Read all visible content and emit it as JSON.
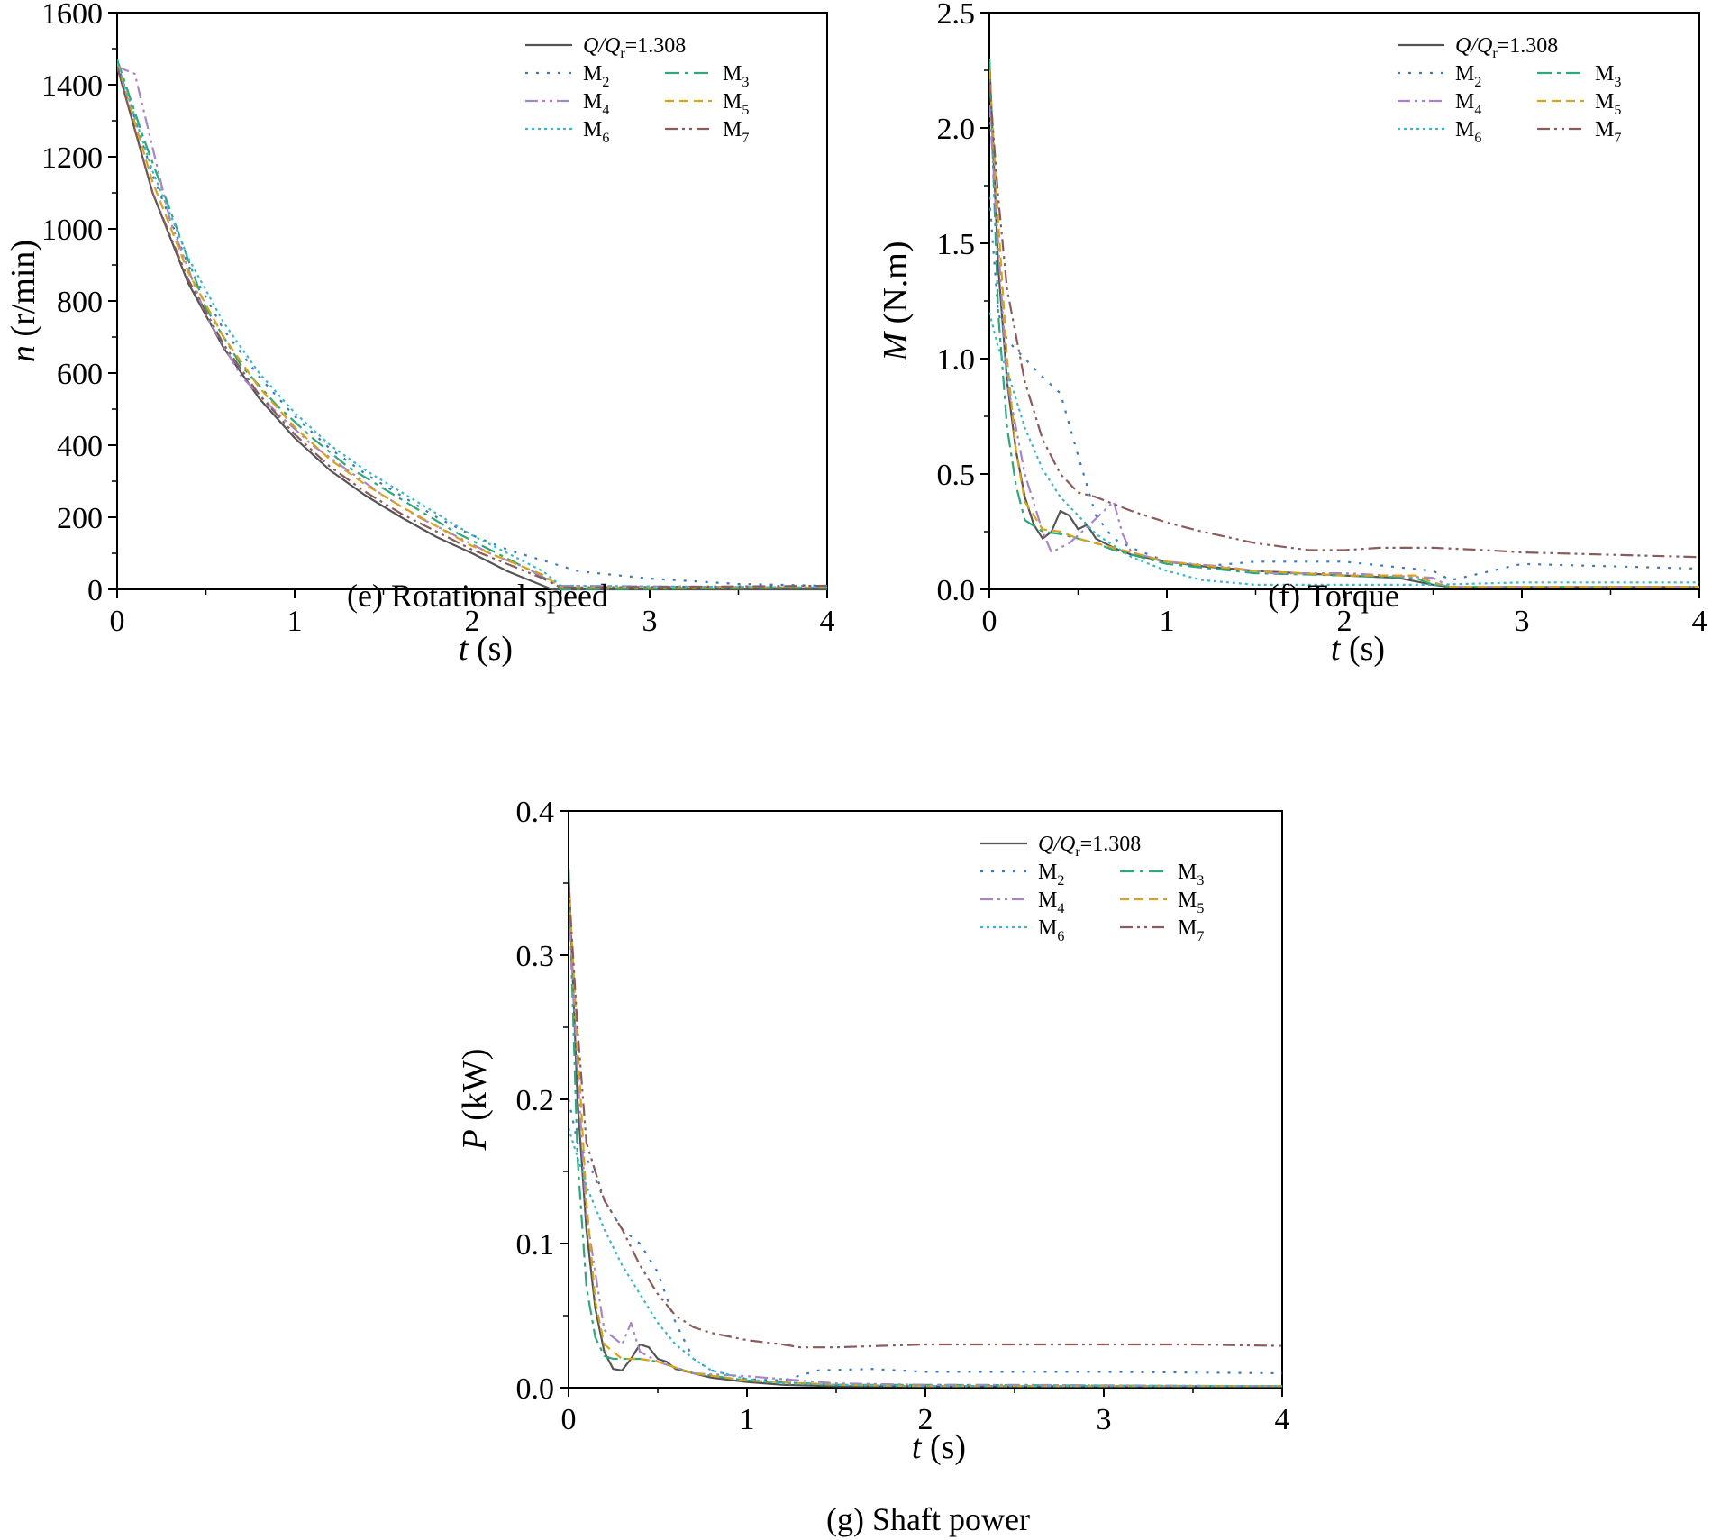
{
  "chart_data": [
    {
      "type": "line",
      "id": "speed",
      "caption": "(e) Rotational speed",
      "xlabel_italic": "t",
      "xlabel_unit": " (s)",
      "ylabel_italic": "n",
      "ylabel_unit": " (r/min)",
      "xlim": [
        0,
        4
      ],
      "ylim": [
        0,
        1600
      ],
      "xticks": [
        0,
        1,
        2,
        3,
        4
      ],
      "xtick_labels": [
        "0",
        "1",
        "2",
        "3",
        "4"
      ],
      "yticks": [
        0,
        200,
        400,
        600,
        800,
        1000,
        1200,
        1400,
        1600
      ],
      "ytick_labels": [
        "0",
        "200",
        "400",
        "600",
        "800",
        "1000",
        "1200",
        "1400",
        "1600"
      ],
      "legend_position": "top-right",
      "series": [
        {
          "key": "Q",
          "name": "Q/Qr=1.308",
          "color": "#555555",
          "dash": "solid",
          "x": [
            0,
            0.2,
            0.4,
            0.6,
            0.8,
            1.0,
            1.2,
            1.4,
            1.6,
            1.8,
            2.0,
            2.2,
            2.4,
            2.45,
            4.0
          ],
          "y": [
            1450,
            1100,
            850,
            670,
            530,
            420,
            330,
            260,
            200,
            145,
            100,
            50,
            10,
            0,
            0
          ]
        },
        {
          "key": "M2",
          "name": "M2",
          "color": "#3a78c2",
          "dash": "dot",
          "x": [
            0,
            0.2,
            0.4,
            0.6,
            0.8,
            1.0,
            1.2,
            1.4,
            1.6,
            1.8,
            2.0,
            2.2,
            2.4,
            2.6,
            3.0,
            3.5,
            4.0
          ],
          "y": [
            1460,
            1150,
            900,
            720,
            590,
            480,
            390,
            320,
            260,
            200,
            150,
            110,
            80,
            50,
            30,
            15,
            10
          ]
        },
        {
          "key": "M3",
          "name": "M3",
          "color": "#2ca87a",
          "dash": "dashdot",
          "x": [
            0,
            0.15,
            0.3,
            0.5,
            0.7,
            0.9,
            1.1,
            1.3,
            1.5,
            1.7,
            1.9,
            2.1,
            2.3,
            2.45,
            2.5,
            4.0
          ],
          "y": [
            1470,
            1250,
            1050,
            780,
            620,
            510,
            420,
            340,
            280,
            220,
            160,
            110,
            60,
            20,
            0,
            5
          ]
        },
        {
          "key": "M4",
          "name": "M4",
          "color": "#a884c8",
          "dash": "dashdotdot",
          "x": [
            0,
            0.1,
            0.3,
            0.5,
            0.7,
            0.9,
            1.1,
            1.3,
            1.5,
            1.7,
            1.9,
            2.1,
            2.3,
            2.5,
            4.0
          ],
          "y": [
            1450,
            1430,
            1020,
            760,
            590,
            490,
            400,
            330,
            260,
            200,
            150,
            100,
            60,
            10,
            5
          ]
        },
        {
          "key": "M5",
          "name": "M5",
          "color": "#d9a21b",
          "dash": "dash",
          "x": [
            0,
            0.2,
            0.4,
            0.6,
            0.8,
            1.0,
            1.2,
            1.4,
            1.6,
            1.8,
            2.0,
            2.2,
            2.4,
            2.5,
            4.0
          ],
          "y": [
            1460,
            1130,
            880,
            700,
            560,
            450,
            360,
            290,
            230,
            175,
            120,
            80,
            40,
            5,
            5
          ]
        },
        {
          "key": "M6",
          "name": "M6",
          "color": "#3bb8c8",
          "dash": "dense-dot",
          "x": [
            0,
            0.2,
            0.4,
            0.6,
            0.8,
            1.0,
            1.2,
            1.4,
            1.6,
            1.8,
            2.0,
            2.2,
            2.4,
            2.5,
            4.0
          ],
          "y": [
            1460,
            1160,
            920,
            740,
            600,
            490,
            400,
            330,
            270,
            210,
            150,
            100,
            50,
            10,
            5
          ]
        },
        {
          "key": "M7",
          "name": "M7",
          "color": "#8b5a5a",
          "dash": "dashdotdot",
          "x": [
            0,
            0.2,
            0.4,
            0.6,
            0.8,
            1.0,
            1.2,
            1.4,
            1.6,
            1.8,
            2.0,
            2.2,
            2.4,
            2.5,
            4.0
          ],
          "y": [
            1450,
            1100,
            860,
            680,
            540,
            430,
            340,
            270,
            210,
            160,
            110,
            70,
            30,
            5,
            10
          ]
        }
      ]
    },
    {
      "type": "line",
      "id": "torque",
      "caption": "(f) Torque",
      "xlabel_italic": "t",
      "xlabel_unit": " (s)",
      "ylabel_italic": "M",
      "ylabel_unit": " (N.m)",
      "xlim": [
        0,
        4
      ],
      "ylim": [
        0,
        2.5
      ],
      "xticks": [
        0,
        1,
        2,
        3,
        4
      ],
      "xtick_labels": [
        "0",
        "1",
        "2",
        "3",
        "4"
      ],
      "yticks": [
        0,
        0.5,
        1.0,
        1.5,
        2.0,
        2.5
      ],
      "ytick_labels": [
        "0.0",
        "0.5",
        "1.0",
        "1.5",
        "2.0",
        "2.5"
      ],
      "legend_position": "top-right",
      "series": [
        {
          "key": "Q",
          "name": "Q/Qr=1.308",
          "color": "#555555",
          "dash": "solid",
          "x": [
            0,
            0.05,
            0.1,
            0.15,
            0.2,
            0.25,
            0.3,
            0.35,
            0.4,
            0.45,
            0.5,
            0.55,
            0.6,
            0.7,
            0.8,
            1.0,
            1.2,
            1.5,
            2.0,
            2.3,
            2.5,
            2.6,
            3.0,
            4.0
          ],
          "y": [
            2.3,
            1.4,
            0.9,
            0.6,
            0.4,
            0.28,
            0.22,
            0.25,
            0.34,
            0.32,
            0.26,
            0.28,
            0.22,
            0.18,
            0.15,
            0.12,
            0.1,
            0.08,
            0.06,
            0.05,
            0.02,
            0.01,
            0.01,
            0.01
          ]
        },
        {
          "key": "M2",
          "name": "M2",
          "color": "#3a78c2",
          "dash": "dot",
          "x": [
            0,
            0.05,
            0.1,
            0.2,
            0.3,
            0.4,
            0.5,
            0.6,
            0.7,
            0.8,
            1.0,
            1.2,
            1.5,
            2.0,
            2.5,
            2.6,
            3.0,
            3.5,
            4.0
          ],
          "y": [
            1.7,
            1.2,
            1.08,
            1.0,
            0.92,
            0.85,
            0.58,
            0.32,
            0.22,
            0.18,
            0.12,
            0.1,
            0.12,
            0.12,
            0.08,
            0.04,
            0.11,
            0.1,
            0.09
          ]
        },
        {
          "key": "M3",
          "name": "M3",
          "color": "#2ca87a",
          "dash": "dashdot",
          "x": [
            0,
            0.05,
            0.1,
            0.15,
            0.2,
            0.3,
            0.4,
            0.5,
            0.6,
            0.7,
            1.0,
            1.5,
            2.0,
            2.4,
            2.5,
            2.6,
            4.0
          ],
          "y": [
            2.3,
            1.2,
            0.7,
            0.45,
            0.3,
            0.25,
            0.24,
            0.22,
            0.2,
            0.17,
            0.11,
            0.07,
            0.06,
            0.05,
            0.02,
            0.01,
            0.01
          ]
        },
        {
          "key": "M4",
          "name": "M4",
          "color": "#a884c8",
          "dash": "dashdotdot",
          "x": [
            0,
            0.05,
            0.1,
            0.2,
            0.3,
            0.35,
            0.45,
            0.55,
            0.7,
            0.75,
            0.8,
            1.0,
            1.3,
            1.6,
            2.0,
            2.5,
            2.6,
            4.0
          ],
          "y": [
            2.1,
            1.5,
            0.9,
            0.5,
            0.25,
            0.16,
            0.2,
            0.27,
            0.38,
            0.24,
            0.16,
            0.12,
            0.1,
            0.07,
            0.07,
            0.05,
            0.01,
            0.01
          ]
        },
        {
          "key": "M5",
          "name": "M5",
          "color": "#d9a21b",
          "dash": "dash",
          "x": [
            0,
            0.05,
            0.1,
            0.15,
            0.2,
            0.3,
            0.4,
            0.5,
            0.6,
            0.7,
            1.0,
            1.5,
            2.0,
            2.4,
            2.5,
            2.6,
            4.0
          ],
          "y": [
            2.25,
            1.6,
            1.0,
            0.6,
            0.38,
            0.26,
            0.25,
            0.22,
            0.2,
            0.18,
            0.12,
            0.08,
            0.06,
            0.06,
            0.03,
            0.01,
            0.01
          ]
        },
        {
          "key": "M6",
          "name": "M6",
          "color": "#3bb8c8",
          "dash": "dense-dot",
          "x": [
            0,
            0.05,
            0.1,
            0.2,
            0.3,
            0.4,
            0.5,
            0.6,
            0.8,
            1.0,
            1.2,
            1.5,
            2.0,
            2.5,
            3.0,
            4.0
          ],
          "y": [
            1.2,
            1.05,
            0.95,
            0.7,
            0.52,
            0.4,
            0.32,
            0.24,
            0.14,
            0.08,
            0.04,
            0.02,
            0.02,
            0.02,
            0.03,
            0.03
          ]
        },
        {
          "key": "M7",
          "name": "M7",
          "color": "#8b5a5a",
          "dash": "dashdotdot",
          "x": [
            0,
            0.05,
            0.1,
            0.2,
            0.3,
            0.4,
            0.5,
            0.6,
            0.8,
            1.0,
            1.2,
            1.5,
            1.8,
            2.0,
            2.2,
            2.5,
            2.8,
            3.0,
            3.5,
            4.0
          ],
          "y": [
            2.2,
            1.7,
            1.3,
            0.9,
            0.65,
            0.5,
            0.42,
            0.4,
            0.34,
            0.29,
            0.25,
            0.2,
            0.17,
            0.17,
            0.18,
            0.18,
            0.17,
            0.16,
            0.15,
            0.14
          ]
        }
      ]
    },
    {
      "type": "line",
      "id": "power",
      "caption": "(g) Shaft power",
      "xlabel_italic": "t",
      "xlabel_unit": " (s)",
      "ylabel_italic": "P",
      "ylabel_unit": " (kW)",
      "xlim": [
        0,
        4
      ],
      "ylim": [
        0,
        0.4
      ],
      "xticks": [
        0,
        1,
        2,
        3,
        4
      ],
      "xtick_labels": [
        "0",
        "1",
        "2",
        "3",
        "4"
      ],
      "yticks": [
        0,
        0.1,
        0.2,
        0.3,
        0.4
      ],
      "ytick_labels": [
        "0.0",
        "0.1",
        "0.2",
        "0.3",
        "0.4"
      ],
      "legend_position": "top-right",
      "series": [
        {
          "key": "Q",
          "name": "Q/Qr=1.308",
          "color": "#555555",
          "dash": "solid",
          "x": [
            0,
            0.05,
            0.1,
            0.15,
            0.2,
            0.25,
            0.3,
            0.35,
            0.4,
            0.45,
            0.5,
            0.55,
            0.6,
            0.7,
            0.8,
            1.0,
            1.2,
            1.5,
            2.0,
            4.0
          ],
          "y": [
            0.36,
            0.2,
            0.11,
            0.055,
            0.025,
            0.013,
            0.012,
            0.02,
            0.03,
            0.028,
            0.02,
            0.018,
            0.013,
            0.01,
            0.007,
            0.004,
            0.002,
            0.001,
            0.001,
            0.001
          ]
        },
        {
          "key": "M2",
          "name": "M2",
          "color": "#3a78c2",
          "dash": "dot",
          "x": [
            0,
            0.05,
            0.1,
            0.2,
            0.3,
            0.4,
            0.5,
            0.6,
            0.7,
            0.8,
            1.0,
            1.2,
            1.4,
            1.7,
            2.0,
            3.0,
            4.0
          ],
          "y": [
            0.2,
            0.17,
            0.16,
            0.13,
            0.11,
            0.1,
            0.08,
            0.045,
            0.02,
            0.012,
            0.006,
            0.005,
            0.012,
            0.013,
            0.011,
            0.011,
            0.01
          ]
        },
        {
          "key": "M3",
          "name": "M3",
          "color": "#2ca87a",
          "dash": "dashdot",
          "x": [
            0,
            0.05,
            0.1,
            0.15,
            0.2,
            0.25,
            0.3,
            0.4,
            0.5,
            0.6,
            0.7,
            1.0,
            1.5,
            2.0,
            4.0
          ],
          "y": [
            0.36,
            0.16,
            0.07,
            0.035,
            0.022,
            0.02,
            0.02,
            0.02,
            0.018,
            0.014,
            0.01,
            0.005,
            0.002,
            0.002,
            0.001
          ]
        },
        {
          "key": "M4",
          "name": "M4",
          "color": "#a884c8",
          "dash": "dashdotdot",
          "x": [
            0,
            0.05,
            0.1,
            0.2,
            0.3,
            0.35,
            0.4,
            0.5,
            0.6,
            0.7,
            1.0,
            1.5,
            2.0,
            2.5,
            4.0
          ],
          "y": [
            0.34,
            0.22,
            0.12,
            0.04,
            0.03,
            0.045,
            0.025,
            0.018,
            0.014,
            0.01,
            0.008,
            0.003,
            0.002,
            0.002,
            0.001
          ]
        },
        {
          "key": "M5",
          "name": "M5",
          "color": "#d9a21b",
          "dash": "dash",
          "x": [
            0,
            0.05,
            0.1,
            0.15,
            0.2,
            0.3,
            0.4,
            0.5,
            0.6,
            0.7,
            1.0,
            1.5,
            2.0,
            4.0
          ],
          "y": [
            0.35,
            0.24,
            0.13,
            0.06,
            0.03,
            0.02,
            0.02,
            0.018,
            0.014,
            0.01,
            0.005,
            0.002,
            0.001,
            0.001
          ]
        },
        {
          "key": "M6",
          "name": "M6",
          "color": "#3bb8c8",
          "dash": "dense-dot",
          "x": [
            0,
            0.05,
            0.1,
            0.2,
            0.3,
            0.4,
            0.5,
            0.6,
            0.7,
            0.8,
            1.0,
            1.2,
            1.5,
            2.0,
            4.0
          ],
          "y": [
            0.18,
            0.16,
            0.14,
            0.11,
            0.085,
            0.065,
            0.045,
            0.03,
            0.02,
            0.012,
            0.006,
            0.003,
            0.002,
            0.001,
            0.001
          ]
        },
        {
          "key": "M7",
          "name": "M7",
          "color": "#8b5a5a",
          "dash": "dashdotdot",
          "x": [
            0,
            0.05,
            0.1,
            0.2,
            0.3,
            0.4,
            0.5,
            0.6,
            0.7,
            0.8,
            1.0,
            1.2,
            1.3,
            1.5,
            2.0,
            2.5,
            3.0,
            3.5,
            4.0
          ],
          "y": [
            0.35,
            0.25,
            0.17,
            0.13,
            0.11,
            0.085,
            0.065,
            0.05,
            0.042,
            0.038,
            0.033,
            0.03,
            0.028,
            0.028,
            0.03,
            0.03,
            0.03,
            0.03,
            0.029
          ]
        }
      ]
    }
  ]
}
